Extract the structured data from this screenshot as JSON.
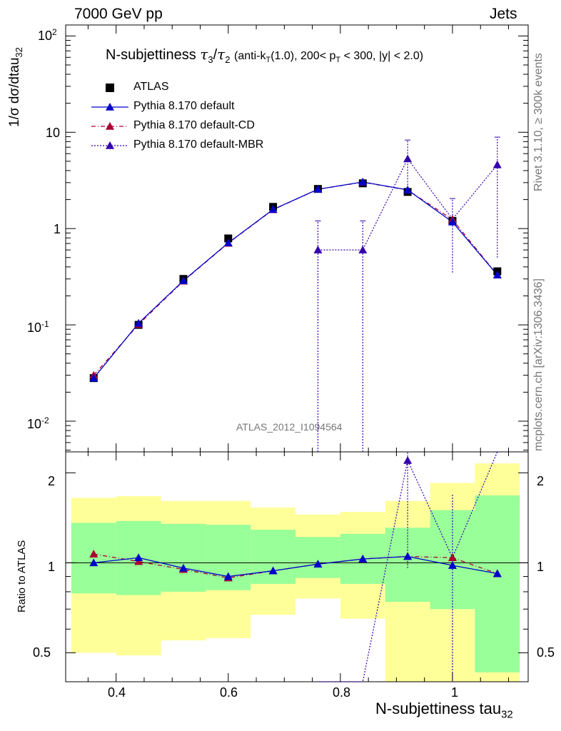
{
  "header": {
    "left": "7000 GeV pp",
    "right": "Jets"
  },
  "title": {
    "main": "N-subjettiness",
    "tau3": "τ",
    "sub3": "3",
    "slash": "/",
    "tau2": "τ",
    "sub2": "2",
    "selection_a": "(anti-k",
    "selection_T": "T",
    "selection_b": "(1.0), 200< p",
    "selection_T2": "T",
    "selection_c": " < 300, |y| < 2.0)"
  },
  "side_labels": {
    "rivet": "Rivet 3.1.10, ≥ 300k events",
    "mcplots": "mcplots.cern.ch [arXiv:1306.3436]",
    "analysis": "ATLAS_2012_I1094564"
  },
  "axes": {
    "ylabel_main": "1/σ dσ/dtau",
    "ylabel_main_sub": "32",
    "ylabel_ratio": "Ratio to ATLAS",
    "xlabel": "N-subjettiness tau",
    "xlabel_sub": "32",
    "x_ticks": [
      "0.4",
      "0.6",
      "0.8",
      "1"
    ],
    "y_ticks_main": [
      {
        "base": "10",
        "exp": "-2"
      },
      {
        "base": "10",
        "exp": "-1"
      },
      {
        "base": "1",
        "exp": ""
      },
      {
        "base": "10",
        "exp": ""
      },
      {
        "base": "10",
        "exp": "2"
      }
    ],
    "y_ticks_ratio": [
      "0.5",
      "1",
      "2"
    ]
  },
  "legend": [
    {
      "label": "ATLAS"
    },
    {
      "label": "Pythia 8.170 default"
    },
    {
      "label": "Pythia 8.170 default-CD"
    },
    {
      "label": "Pythia 8.170 default-MBR"
    }
  ],
  "chart_data": {
    "type": "line",
    "x_scale": "linear",
    "y_scale": "log",
    "xlim": [
      0.31,
      1.135
    ],
    "ylim": [
      0.0048,
      130
    ],
    "ratio_ylim": [
      0.4,
      2.35
    ],
    "bin_edges": [
      0.32,
      0.4,
      0.48,
      0.56,
      0.64,
      0.72,
      0.8,
      0.88,
      0.96,
      1.04,
      1.12
    ],
    "x": [
      0.36,
      0.44,
      0.52,
      0.6,
      0.68,
      0.76,
      0.84,
      0.92,
      1.0,
      1.08
    ],
    "series": [
      {
        "name": "ATLAS",
        "color": "#000000",
        "marker": "square",
        "values": [
          0.028,
          0.1,
          0.3,
          0.79,
          1.68,
          2.58,
          2.95,
          2.4,
          1.2,
          0.36
        ]
      },
      {
        "name": "Pythia 8.170 default",
        "color": "#0000cc",
        "marker": "triangle",
        "line": "solid",
        "values": [
          0.028,
          0.104,
          0.288,
          0.71,
          1.58,
          2.56,
          3.05,
          2.52,
          1.17,
          0.33
        ],
        "ratio": [
          1.0,
          1.04,
          0.96,
          0.9,
          0.94,
          0.99,
          1.03,
          1.05,
          0.98,
          0.92
        ]
      },
      {
        "name": "Pythia 8.170 default-CD",
        "color": "#aa0033",
        "marker": "triangle",
        "line": "dashdot",
        "values": [
          0.03,
          0.101,
          0.285,
          0.705,
          1.57,
          2.56,
          3.03,
          2.51,
          1.24,
          0.33
        ],
        "ratio": [
          1.07,
          1.01,
          0.95,
          0.89,
          0.94,
          0.99,
          1.03,
          1.05,
          1.04,
          0.92
        ]
      },
      {
        "name": "Pythia 8.170 default-MBR",
        "color": "#3300aa",
        "marker": "triangle",
        "line": "dotted",
        "values": [
          null,
          null,
          null,
          null,
          null,
          0.6,
          0.6,
          5.3,
          1.25,
          4.6
        ],
        "errors_low": [
          null,
          null,
          null,
          null,
          null,
          0.6,
          0.6,
          3.0,
          0.9,
          4.1
        ],
        "errors_high": [
          null,
          null,
          null,
          null,
          null,
          0.6,
          0.6,
          3.0,
          0.8,
          4.3
        ],
        "ratio": [
          null,
          null,
          null,
          null,
          null,
          0.23,
          0.2,
          2.2,
          1.04,
          12.8
        ]
      }
    ],
    "ratio_bands": {
      "yellow": [
        [
          0.5,
          1.65
        ],
        [
          0.49,
          1.67
        ],
        [
          0.55,
          1.61
        ],
        [
          0.56,
          1.61
        ],
        [
          0.67,
          1.53
        ],
        [
          0.76,
          1.45
        ],
        [
          0.65,
          1.48
        ],
        [
          0.38,
          1.61
        ],
        [
          0.32,
          1.85
        ],
        [
          0.34,
          2.15
        ]
      ],
      "green": [
        [
          0.79,
          1.36
        ],
        [
          0.78,
          1.38
        ],
        [
          0.8,
          1.35
        ],
        [
          0.81,
          1.34
        ],
        [
          0.85,
          1.29
        ],
        [
          0.89,
          1.22
        ],
        [
          0.85,
          1.25
        ],
        [
          0.74,
          1.31
        ],
        [
          0.7,
          1.5
        ],
        [
          0.43,
          1.68
        ]
      ],
      "colors": {
        "yellow": "#ffff99",
        "green": "#99ff99"
      }
    }
  }
}
